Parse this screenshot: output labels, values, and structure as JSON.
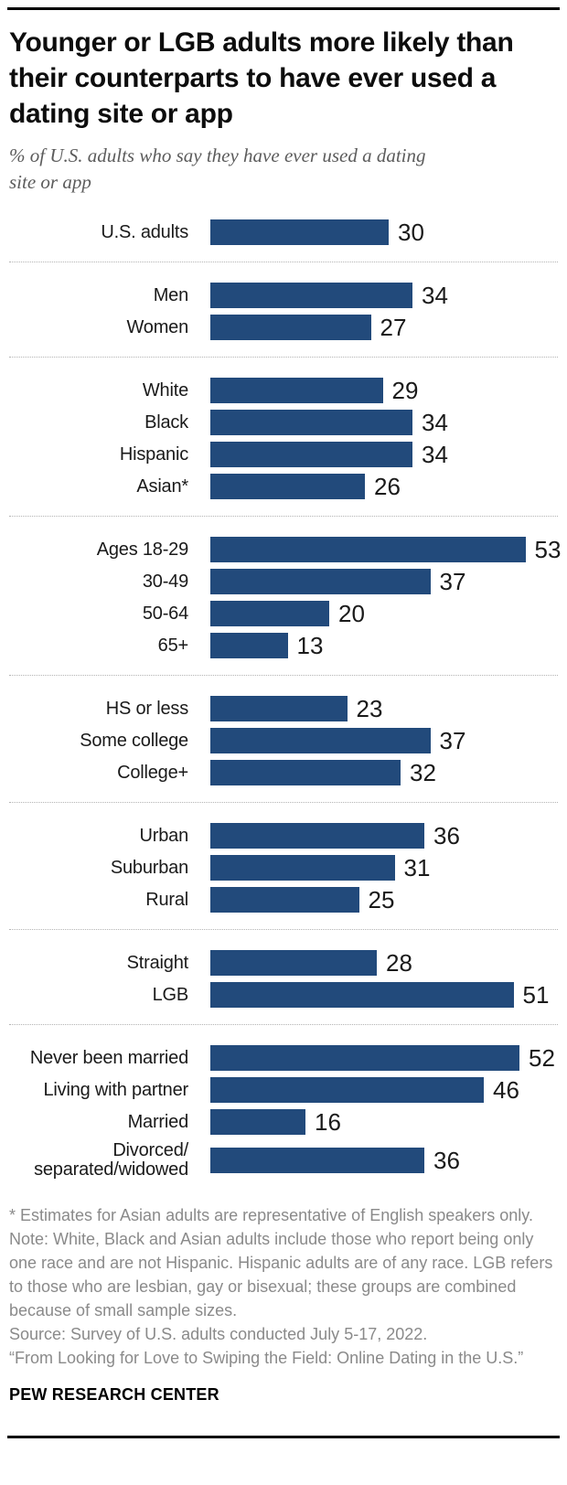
{
  "header": {
    "title_lines": [
      "Younger or LGB adults more likely than",
      "their counterparts to have ever used a",
      "dating site or app"
    ],
    "subtitle_lines": [
      "% of U.S. adults who say they have ever used a dating",
      "site or app"
    ]
  },
  "chart_data": {
    "type": "bar",
    "orientation": "horizontal",
    "unit": "%",
    "value_range": [
      0,
      53
    ],
    "bar_color": "#224a7b",
    "grid": false,
    "legend": false,
    "groups": [
      {
        "rows": [
          {
            "label_lines": [
              "U.S. adults"
            ],
            "value": 30
          }
        ]
      },
      {
        "rows": [
          {
            "label_lines": [
              "Men"
            ],
            "value": 34
          },
          {
            "label_lines": [
              "Women"
            ],
            "value": 27
          }
        ]
      },
      {
        "rows": [
          {
            "label_lines": [
              "White"
            ],
            "value": 29
          },
          {
            "label_lines": [
              "Black"
            ],
            "value": 34
          },
          {
            "label_lines": [
              "Hispanic"
            ],
            "value": 34
          },
          {
            "label_lines": [
              "Asian*"
            ],
            "value": 26
          }
        ]
      },
      {
        "rows": [
          {
            "label_lines": [
              "Ages 18-29"
            ],
            "value": 53
          },
          {
            "label_lines": [
              "30-49"
            ],
            "value": 37
          },
          {
            "label_lines": [
              "50-64"
            ],
            "value": 20
          },
          {
            "label_lines": [
              "65+"
            ],
            "value": 13
          }
        ]
      },
      {
        "rows": [
          {
            "label_lines": [
              "HS or less"
            ],
            "value": 23
          },
          {
            "label_lines": [
              "Some college"
            ],
            "value": 37
          },
          {
            "label_lines": [
              "College+"
            ],
            "value": 32
          }
        ]
      },
      {
        "rows": [
          {
            "label_lines": [
              "Urban"
            ],
            "value": 36
          },
          {
            "label_lines": [
              "Suburban"
            ],
            "value": 31
          },
          {
            "label_lines": [
              "Rural"
            ],
            "value": 25
          }
        ]
      },
      {
        "rows": [
          {
            "label_lines": [
              "Straight"
            ],
            "value": 28
          },
          {
            "label_lines": [
              "LGB"
            ],
            "value": 51
          }
        ]
      },
      {
        "rows": [
          {
            "label_lines": [
              "Never been married"
            ],
            "value": 52
          },
          {
            "label_lines": [
              "Living with partner"
            ],
            "value": 46
          },
          {
            "label_lines": [
              "Married"
            ],
            "value": 16
          },
          {
            "label_lines": [
              "Divorced/",
              "separated/widowed"
            ],
            "value": 36
          }
        ]
      }
    ]
  },
  "notes": {
    "asterisk": "* Estimates for Asian adults are representative of English speakers only.",
    "note": "Note: White, Black and Asian adults include those who report being only one race and are not Hispanic. Hispanic adults are of any race. LGB refers to those who are lesbian, gay or bisexual; these groups are combined because of small sample sizes.",
    "source": "Source: Survey of U.S. adults conducted July 5-17, 2022.",
    "citation": "“From Looking for Love to Swiping the Field: Online Dating in the U.S.”"
  },
  "footer": {
    "brand": "PEW RESEARCH CENTER"
  }
}
